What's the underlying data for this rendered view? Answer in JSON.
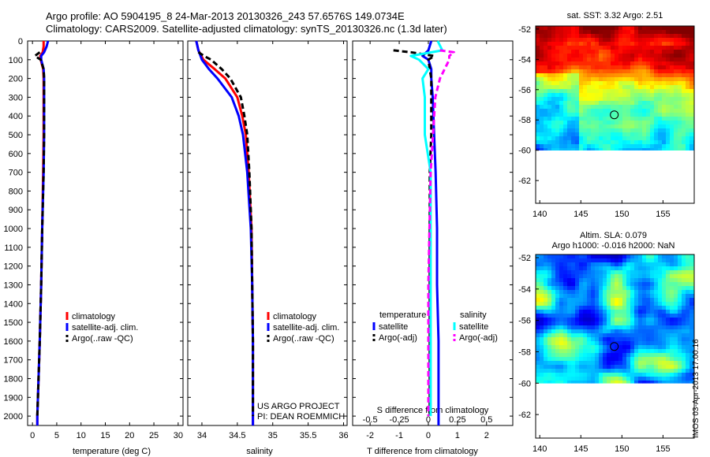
{
  "header": {
    "line1": "Argo profile: AO 5904195_8 24-Mar-2013 20130326_243 57.6576S 149.0734E",
    "line2": "Climatology: CARS2009. Satellite-adjusted climatology: synTS_20130326.nc (1.3d later)"
  },
  "watermark": "IMOS 03-Apr-2013 17:00:16",
  "colors": {
    "climatology": "#ff0000",
    "satellite": "#0000ff",
    "argo": "#000000",
    "sal_satellite": "#00ffff",
    "sal_argo": "#ff00ff"
  },
  "chart_data": [
    {
      "id": "temperature",
      "type": "line",
      "xlabel": "temperature (deg C)",
      "xticks": [
        "0",
        "5",
        "10",
        "15",
        "20",
        "25",
        "30"
      ],
      "xlim": [
        -1,
        31
      ],
      "ylim": [
        0,
        2050
      ],
      "yinverted": true,
      "yticks": [
        "0",
        "100",
        "200",
        "300",
        "400",
        "500",
        "600",
        "700",
        "800",
        "900",
        "1000",
        "1100",
        "1200",
        "1300",
        "1400",
        "1500",
        "1600",
        "1700",
        "1800",
        "1900",
        "2000"
      ],
      "legend": [
        "climatology",
        "satellite-adj. clim.",
        "Argo(..raw -QC)"
      ],
      "series": [
        {
          "name": "climatology",
          "color": "#ff0000",
          "dash": false,
          "depth": [
            0,
            30,
            60,
            80,
            100,
            150,
            200,
            300,
            400,
            500,
            700,
            1000,
            1300,
            1600,
            2000,
            2050
          ],
          "values": [
            2.3,
            2.3,
            2.1,
            1.6,
            1.7,
            2.2,
            2.3,
            2.3,
            2.3,
            2.3,
            2.2,
            2.0,
            1.8,
            1.5,
            1.0,
            1.0
          ]
        },
        {
          "name": "satellite-adj. clim.",
          "color": "#0000ff",
          "dash": false,
          "depth": [
            0,
            30,
            60,
            80,
            100,
            150,
            200,
            300,
            400,
            500,
            700,
            1000,
            1300,
            1600,
            2000,
            2050
          ],
          "values": [
            3.2,
            2.9,
            2.4,
            1.8,
            1.8,
            2.3,
            2.4,
            2.4,
            2.4,
            2.4,
            2.3,
            2.0,
            1.8,
            1.5,
            1.0,
            1.0
          ]
        },
        {
          "name": "Argo(..raw -QC)",
          "color": "#000000",
          "dash": true,
          "depth": [
            60,
            80,
            100,
            150,
            200,
            300,
            400,
            500,
            700,
            1000,
            1300,
            1600,
            2000
          ],
          "values": [
            1.5,
            0.5,
            1.7,
            2.3,
            2.4,
            2.4,
            2.4,
            2.4,
            2.3,
            2.0,
            1.8,
            1.5,
            1.0
          ]
        }
      ]
    },
    {
      "id": "salinity",
      "type": "line",
      "xlabel": "salinity",
      "xticks": [
        "34",
        "34.5",
        "35",
        "35.5",
        "36"
      ],
      "xlim": [
        33.8,
        36.05
      ],
      "ylim": [
        0,
        2050
      ],
      "yinverted": true,
      "legend": [
        "climatology",
        "satellite-adj. clim.",
        "Argo(..raw -QC)"
      ],
      "annotation": [
        "US ARGO PROJECT",
        "PI: DEAN ROEMMICH"
      ],
      "series": [
        {
          "name": "climatology",
          "color": "#ff0000",
          "dash": false,
          "depth": [
            0,
            50,
            100,
            150,
            200,
            300,
            400,
            500,
            700,
            1000,
            1300,
            1600,
            2000,
            2050
          ],
          "values": [
            33.92,
            33.95,
            34.02,
            34.18,
            34.33,
            34.5,
            34.57,
            34.62,
            34.66,
            34.7,
            34.71,
            34.72,
            34.72,
            34.72
          ]
        },
        {
          "name": "satellite-adj. clim.",
          "color": "#0000ff",
          "dash": false,
          "depth": [
            0,
            50,
            100,
            150,
            200,
            300,
            400,
            500,
            700,
            1000,
            1300,
            1600,
            2000,
            2050
          ],
          "values": [
            33.92,
            33.95,
            34.0,
            34.1,
            34.22,
            34.42,
            34.52,
            34.58,
            34.64,
            34.69,
            34.71,
            34.72,
            34.72,
            34.72
          ]
        },
        {
          "name": "Argo(..raw -QC)",
          "color": "#000000",
          "dash": true,
          "depth": [
            60,
            80,
            100,
            150,
            200,
            300,
            400,
            500,
            700,
            1000,
            1300,
            1600,
            2000
          ],
          "values": [
            33.95,
            34.03,
            34.13,
            34.28,
            34.4,
            34.55,
            34.6,
            34.64,
            34.67,
            34.7,
            34.71,
            34.72,
            34.72
          ]
        }
      ]
    },
    {
      "id": "difference",
      "type": "line",
      "xlabel": "T difference from climatology",
      "xticks": [
        "-2",
        "-1",
        "0",
        "1",
        "2"
      ],
      "xlim": [
        -2.6,
        2.9
      ],
      "top_axis_label": "S difference from climatology",
      "top_xticks": [
        "-0.5",
        "-0.25",
        "0",
        "0.25",
        "0.5"
      ],
      "ylim": [
        0,
        2050
      ],
      "yinverted": true,
      "legend_temperature": "temperature",
      "legend_salinity": "salinity",
      "legend": [
        "satellite",
        "Argo(-adj)",
        "satellite",
        "Argo(-adj)"
      ],
      "series": [
        {
          "name": "temperature satellite",
          "color": "#0000ff",
          "dash": false,
          "depth": [
            0,
            50,
            80,
            100,
            150,
            200,
            300,
            500,
            700,
            1000,
            1300,
            1600,
            2000,
            2050
          ],
          "values": [
            0.1,
            0.0,
            -0.2,
            0.0,
            0.1,
            0.1,
            0.15,
            0.2,
            0.25,
            0.3,
            0.3,
            0.35,
            0.35,
            0.35
          ]
        },
        {
          "name": "temperature Argo(-adj)",
          "color": "#000000",
          "dash": true,
          "depth": [
            50,
            60,
            80,
            100,
            150,
            200,
            300,
            500,
            700,
            1000,
            1300,
            1600,
            2000
          ],
          "values": [
            -1.2,
            -0.6,
            0.2,
            0.0,
            0.05,
            0.1,
            0.1,
            0.1,
            0.05,
            0.05,
            0.05,
            0.05,
            0.05
          ]
        },
        {
          "name": "salinity satellite",
          "color": "#00ffff",
          "dash": false,
          "depth": [
            0,
            50,
            80,
            100,
            150,
            200,
            300,
            500,
            700,
            1000,
            1300,
            1600,
            2000
          ],
          "values": [
            0.08,
            0.12,
            -0.15,
            -0.08,
            0.0,
            -0.05,
            -0.03,
            -0.03,
            0.02,
            0.02,
            0.02,
            0.02,
            0.02
          ]
        },
        {
          "name": "salinity Argo(-adj)",
          "color": "#ff00ff",
          "dash": true,
          "depth": [
            50,
            60,
            80,
            100,
            150,
            200,
            300,
            500,
            700,
            1000,
            1300,
            1600,
            2000
          ],
          "values": [
            0.1,
            0.22,
            0.18,
            0.18,
            0.14,
            0.1,
            0.06,
            0.04,
            0.02,
            0.01,
            0.0,
            0.0,
            0.0
          ]
        }
      ]
    },
    {
      "id": "sst_map",
      "type": "heatmap",
      "title": "sat. SST: 3.32 Argo: 2.51",
      "xticks": [
        "140",
        "145",
        "150",
        "155"
      ],
      "yticks": [
        "-52",
        "-54",
        "-56",
        "-58",
        "-60",
        "-62"
      ],
      "xlim": [
        139.5,
        158.8
      ],
      "ylim": [
        -63.5,
        -51.8
      ],
      "marker": {
        "lon": 149.07,
        "lat": -57.66
      }
    },
    {
      "id": "sla_map",
      "type": "heatmap",
      "title": "Altim. SLA: 0.079",
      "subtitle": "Argo h1000: -0.016 h2000: NaN",
      "xticks": [
        "140",
        "145",
        "150",
        "155"
      ],
      "yticks": [
        "-52",
        "-54",
        "-56",
        "-58",
        "-60",
        "-62"
      ],
      "xlim": [
        139.5,
        158.8
      ],
      "ylim": [
        -63.5,
        -51.8
      ],
      "marker": {
        "lon": 149.07,
        "lat": -57.66
      }
    }
  ]
}
